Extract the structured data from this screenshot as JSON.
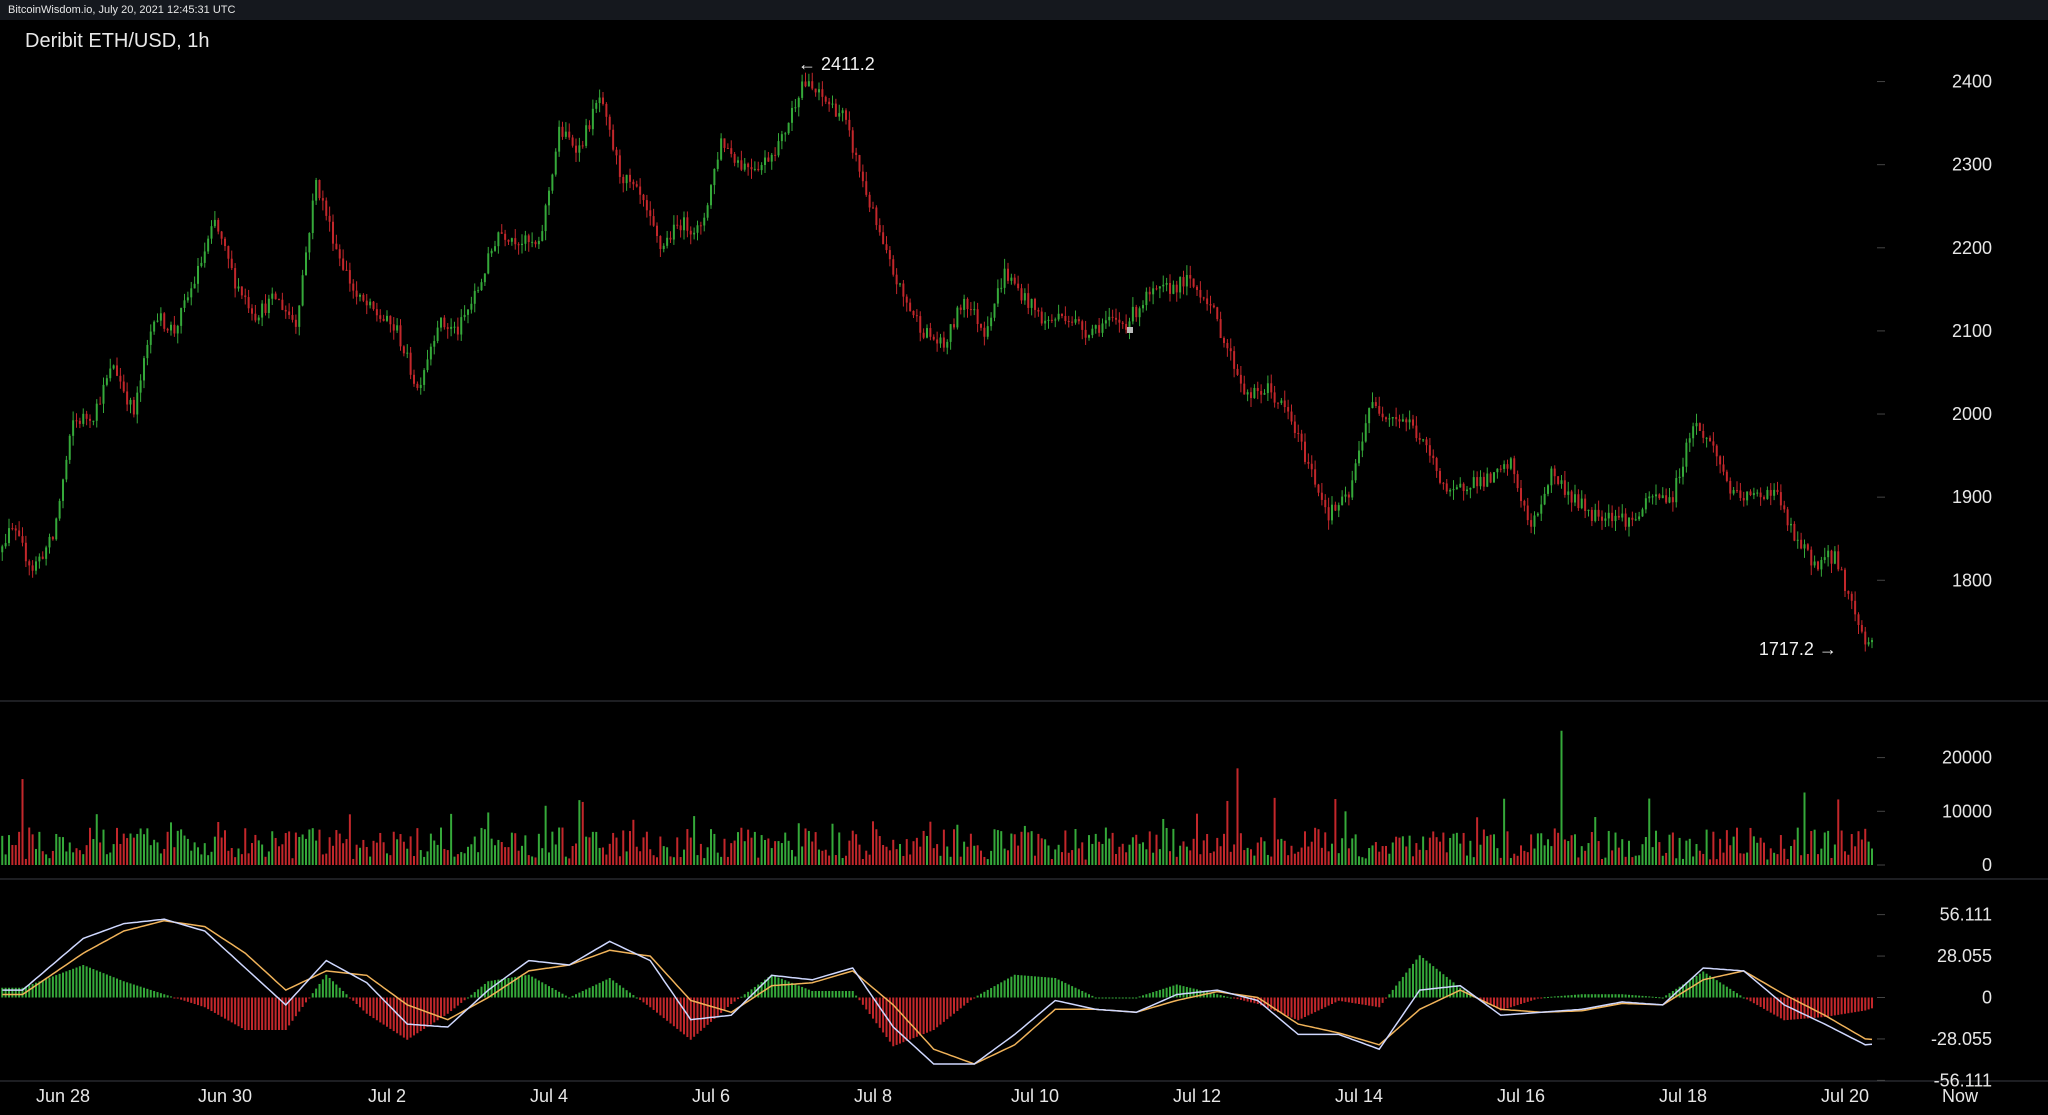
{
  "site_info": "BitcoinWisdom.io, July 20, 2021 12:45:31 UTC",
  "chart_title": "Deribit ETH/USD, 1h",
  "colors": {
    "up": "#35a93a",
    "down": "#c3272b",
    "macd_line": "#cfd8ff",
    "signal_line": "#f0b35a",
    "axis_text": "#e6e6e6",
    "panel_border": "#3a3d45"
  },
  "chart_data": [
    {
      "type": "candlestick",
      "interval": "1h",
      "ylim": [
        1680,
        2450
      ],
      "yticks": [
        1800,
        1900,
        2000,
        2100,
        2200,
        2300,
        2400
      ],
      "high_annotation": {
        "label": "← 2411.2",
        "value": 2411.2,
        "date": "Jul 7"
      },
      "low_annotation": {
        "label": "1717.2 →",
        "value": 1717.2,
        "date": "Jul 20"
      },
      "close_path": [
        [
          "Jun 27",
          1830
        ],
        [
          "Jun 27",
          1860
        ],
        [
          "Jun 27",
          1815
        ],
        [
          "Jun 27",
          1850
        ],
        [
          "Jun 28",
          1990
        ],
        [
          "Jun 28",
          2000
        ],
        [
          "Jun 28",
          2060
        ],
        [
          "Jun 28",
          2000
        ],
        [
          "Jun 29",
          2120
        ],
        [
          "Jun 29",
          2100
        ],
        [
          "Jun 29",
          2160
        ],
        [
          "Jun 29",
          2230
        ],
        [
          "Jun 30",
          2160
        ],
        [
          "Jun 30",
          2120
        ],
        [
          "Jun 30",
          2140
        ],
        [
          "Jun 30",
          2110
        ],
        [
          "Jul 1",
          2280
        ],
        [
          "Jul 1",
          2200
        ],
        [
          "Jul 1",
          2140
        ],
        [
          "Jul 1",
          2120
        ],
        [
          "Jul 2",
          2100
        ],
        [
          "Jul 2",
          2030
        ],
        [
          "Jul 2",
          2110
        ],
        [
          "Jul 2",
          2100
        ],
        [
          "Jul 3",
          2150
        ],
        [
          "Jul 3",
          2220
        ],
        [
          "Jul 3",
          2210
        ],
        [
          "Jul 3",
          2200
        ],
        [
          "Jul 4",
          2340
        ],
        [
          "Jul 4",
          2320
        ],
        [
          "Jul 4",
          2380
        ],
        [
          "Jul 4",
          2290
        ],
        [
          "Jul 5",
          2260
        ],
        [
          "Jul 5",
          2200
        ],
        [
          "Jul 5",
          2230
        ],
        [
          "Jul 5",
          2220
        ],
        [
          "Jul 6",
          2330
        ],
        [
          "Jul 6",
          2300
        ],
        [
          "Jul 6",
          2300
        ],
        [
          "Jul 6",
          2330
        ],
        [
          "Jul 7",
          2400
        ],
        [
          "Jul 7",
          2380
        ],
        [
          "Jul 7",
          2360
        ],
        [
          "Jul 7",
          2280
        ],
        [
          "Jul 8",
          2200
        ],
        [
          "Jul 8",
          2140
        ],
        [
          "Jul 8",
          2100
        ],
        [
          "Jul 8",
          2080
        ],
        [
          "Jul 9",
          2140
        ],
        [
          "Jul 9",
          2100
        ],
        [
          "Jul 9",
          2170
        ],
        [
          "Jul 9",
          2140
        ],
        [
          "Jul 10",
          2110
        ],
        [
          "Jul 10",
          2120
        ],
        [
          "Jul 10",
          2100
        ],
        [
          "Jul 10",
          2110
        ],
        [
          "Jul 11",
          2110
        ],
        [
          "Jul 11",
          2140
        ],
        [
          "Jul 11",
          2150
        ],
        [
          "Jul 11",
          2160
        ],
        [
          "Jul 12",
          2140
        ],
        [
          "Jul 12",
          2080
        ],
        [
          "Jul 12",
          2020
        ],
        [
          "Jul 12",
          2030
        ],
        [
          "Jul 13",
          2000
        ],
        [
          "Jul 13",
          1940
        ],
        [
          "Jul 13",
          1880
        ],
        [
          "Jul 13",
          1900
        ],
        [
          "Jul 14",
          2010
        ],
        [
          "Jul 14",
          2000
        ],
        [
          "Jul 14",
          1990
        ],
        [
          "Jul 14",
          1950
        ],
        [
          "Jul 15",
          1900
        ],
        [
          "Jul 15",
          1920
        ],
        [
          "Jul 15",
          1920
        ],
        [
          "Jul 15",
          1940
        ],
        [
          "Jul 16",
          1860
        ],
        [
          "Jul 16",
          1930
        ],
        [
          "Jul 16",
          1900
        ],
        [
          "Jul 16",
          1880
        ],
        [
          "Jul 17",
          1880
        ],
        [
          "Jul 17",
          1870
        ],
        [
          "Jul 17",
          1900
        ],
        [
          "Jul 17",
          1900
        ],
        [
          "Jul 18",
          1990
        ],
        [
          "Jul 18",
          1960
        ],
        [
          "Jul 18",
          1900
        ],
        [
          "Jul 18",
          1900
        ],
        [
          "Jul 19",
          1910
        ],
        [
          "Jul 19",
          1850
        ],
        [
          "Jul 19",
          1820
        ],
        [
          "Jul 19",
          1830
        ],
        [
          "Jul 20",
          1725
        ],
        [
          "Jul 20",
          1755
        ]
      ]
    },
    {
      "type": "bar",
      "name": "volume",
      "ylim": [
        0,
        27000
      ],
      "yticks": [
        0,
        10000,
        20000
      ],
      "notable_spikes": [
        {
          "date": "Jun 27",
          "value": 16000
        },
        {
          "date": "Jul 12",
          "value": 18000
        },
        {
          "date": "Jul 16",
          "value": 25000
        },
        {
          "date": "Jul 19",
          "value": 13500
        },
        {
          "date": "Jul 20",
          "value": 13500
        }
      ],
      "typical_range": [
        1000,
        7000
      ]
    },
    {
      "type": "line",
      "name": "macd",
      "ylim": [
        -66,
        66
      ],
      "yticks": [
        56.111,
        28.055,
        0,
        -28.055,
        -56.111
      ],
      "ytick_labels": [
        "56.111",
        "28.055",
        "0",
        "-28.055",
        "-56.111"
      ],
      "macd_path": [
        [
          "Jun 27",
          5
        ],
        [
          "Jun 28",
          40
        ],
        [
          "Jun 28",
          50
        ],
        [
          "Jun 29",
          53
        ],
        [
          "Jun 29",
          45
        ],
        [
          "Jun 30",
          20
        ],
        [
          "Jun 30",
          -5
        ],
        [
          "Jul 1",
          25
        ],
        [
          "Jul 1",
          10
        ],
        [
          "Jul 2",
          -18
        ],
        [
          "Jul 2",
          -20
        ],
        [
          "Jul 3",
          5
        ],
        [
          "Jul 3",
          25
        ],
        [
          "Jul 4",
          22
        ],
        [
          "Jul 4",
          38
        ],
        [
          "Jul 5",
          25
        ],
        [
          "Jul 5",
          -15
        ],
        [
          "Jul 6",
          -12
        ],
        [
          "Jul 6",
          15
        ],
        [
          "Jul 7",
          12
        ],
        [
          "Jul 7",
          20
        ],
        [
          "Jul 8",
          -20
        ],
        [
          "Jul 8",
          -45
        ],
        [
          "Jul 9",
          -45
        ],
        [
          "Jul 9",
          -25
        ],
        [
          "Jul 10",
          -2
        ],
        [
          "Jul 10",
          -8
        ],
        [
          "Jul 11",
          -10
        ],
        [
          "Jul 11",
          2
        ],
        [
          "Jul 12",
          5
        ],
        [
          "Jul 12",
          -2
        ],
        [
          "Jul 13",
          -25
        ],
        [
          "Jul 13",
          -25
        ],
        [
          "Jul 14",
          -35
        ],
        [
          "Jul 14",
          5
        ],
        [
          "Jul 15",
          8
        ],
        [
          "Jul 15",
          -12
        ],
        [
          "Jul 16",
          -10
        ],
        [
          "Jul 16",
          -8
        ],
        [
          "Jul 17",
          -3
        ],
        [
          "Jul 17",
          -5
        ],
        [
          "Jul 18",
          20
        ],
        [
          "Jul 18",
          18
        ],
        [
          "Jul 19",
          -5
        ],
        [
          "Jul 19",
          -18
        ],
        [
          "Jul 20",
          -32
        ],
        [
          "Jul 20",
          -30
        ]
      ],
      "signal_path": [
        [
          "Jun 27",
          2
        ],
        [
          "Jun 28",
          30
        ],
        [
          "Jun 28",
          45
        ],
        [
          "Jun 29",
          52
        ],
        [
          "Jun 29",
          48
        ],
        [
          "Jun 30",
          30
        ],
        [
          "Jun 30",
          5
        ],
        [
          "Jul 1",
          18
        ],
        [
          "Jul 1",
          15
        ],
        [
          "Jul 2",
          -5
        ],
        [
          "Jul 2",
          -15
        ],
        [
          "Jul 3",
          0
        ],
        [
          "Jul 3",
          18
        ],
        [
          "Jul 4",
          22
        ],
        [
          "Jul 4",
          32
        ],
        [
          "Jul 5",
          28
        ],
        [
          "Jul 5",
          -2
        ],
        [
          "Jul 6",
          -10
        ],
        [
          "Jul 6",
          8
        ],
        [
          "Jul 7",
          10
        ],
        [
          "Jul 7",
          18
        ],
        [
          "Jul 8",
          -5
        ],
        [
          "Jul 8",
          -35
        ],
        [
          "Jul 9",
          -45
        ],
        [
          "Jul 9",
          -32
        ],
        [
          "Jul 10",
          -8
        ],
        [
          "Jul 10",
          -8
        ],
        [
          "Jul 11",
          -10
        ],
        [
          "Jul 11",
          -2
        ],
        [
          "Jul 12",
          4
        ],
        [
          "Jul 12",
          0
        ],
        [
          "Jul 13",
          -18
        ],
        [
          "Jul 13",
          -24
        ],
        [
          "Jul 14",
          -32
        ],
        [
          "Jul 14",
          -8
        ],
        [
          "Jul 15",
          5
        ],
        [
          "Jul 15",
          -8
        ],
        [
          "Jul 16",
          -10
        ],
        [
          "Jul 16",
          -9
        ],
        [
          "Jul 17",
          -4
        ],
        [
          "Jul 17",
          -5
        ],
        [
          "Jul 18",
          12
        ],
        [
          "Jul 18",
          18
        ],
        [
          "Jul 19",
          2
        ],
        [
          "Jul 19",
          -12
        ],
        [
          "Jul 20",
          -28
        ],
        [
          "Jul 20",
          -30
        ]
      ]
    }
  ],
  "x_axis": {
    "labels": [
      "Jun 28",
      "Jun 30",
      "Jul 2",
      "Jul 4",
      "Jul 6",
      "Jul 8",
      "Jul 10",
      "Jul 12",
      "Jul 14",
      "Jul 16",
      "Jul 18",
      "Jul 20",
      "Now"
    ]
  }
}
